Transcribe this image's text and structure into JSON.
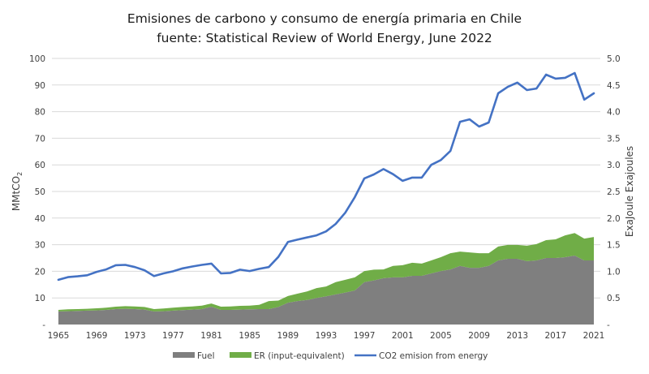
{
  "chart_data": {
    "type": "area",
    "title": "Emisiones de carbono y consumo de energía primaria en Chile",
    "subtitle": "fuente: Statistical Review of World Energy, June 2022",
    "ylabel": "MMtCO",
    "ylabel_sub": "2",
    "y2label": "ExaJoule Exajoules",
    "ylim": [
      0,
      100
    ],
    "y2lim": [
      0,
      5
    ],
    "xlim": [
      1965,
      2021
    ],
    "grid": true,
    "legend_position": "bottom",
    "y_ticks": [
      "-",
      "10",
      "20",
      "30",
      "40",
      "50",
      "60",
      "70",
      "80",
      "90",
      "100"
    ],
    "y2_ticks": [
      "-",
      "0.5",
      "1.0",
      "1.5",
      "2.0",
      "2.5",
      "3.0",
      "3.5",
      "4.0",
      "4.5",
      "5.0"
    ],
    "x_ticks": [
      "1965",
      "1969",
      "1973",
      "1977",
      "1981",
      "1985",
      "1989",
      "1993",
      "1997",
      "2001",
      "2005",
      "2009",
      "2013",
      "2017",
      "2021"
    ],
    "x": [
      1965,
      1966,
      1967,
      1968,
      1969,
      1970,
      1971,
      1972,
      1973,
      1974,
      1975,
      1976,
      1977,
      1978,
      1979,
      1980,
      1981,
      1982,
      1983,
      1984,
      1985,
      1986,
      1987,
      1988,
      1989,
      1990,
      1991,
      1992,
      1993,
      1994,
      1995,
      1996,
      1997,
      1998,
      1999,
      2000,
      2001,
      2002,
      2003,
      2004,
      2005,
      2006,
      2007,
      2008,
      2009,
      2010,
      2011,
      2012,
      2013,
      2014,
      2015,
      2016,
      2017,
      2018,
      2019,
      2020,
      2021
    ],
    "series": [
      {
        "name": "Fuel",
        "kind": "area",
        "axis": "right",
        "unit": "EJ",
        "color": "#7f7f7f",
        "values": [
          0.245,
          0.25,
          0.255,
          0.26,
          0.265,
          0.275,
          0.29,
          0.295,
          0.29,
          0.28,
          0.245,
          0.25,
          0.26,
          0.27,
          0.28,
          0.29,
          0.335,
          0.275,
          0.275,
          0.28,
          0.285,
          0.29,
          0.29,
          0.33,
          0.41,
          0.44,
          0.46,
          0.5,
          0.53,
          0.565,
          0.6,
          0.64,
          0.795,
          0.83,
          0.87,
          0.885,
          0.885,
          0.915,
          0.915,
          0.96,
          1.005,
          1.035,
          1.1,
          1.065,
          1.065,
          1.1,
          1.205,
          1.235,
          1.235,
          1.19,
          1.205,
          1.25,
          1.25,
          1.265,
          1.295,
          1.205,
          1.205
        ]
      },
      {
        "name": "ER (input-equivalent)",
        "kind": "area",
        "axis": "right",
        "unit": "EJ",
        "color": "#70ad47",
        "values": [
          0.03,
          0.035,
          0.035,
          0.035,
          0.04,
          0.04,
          0.045,
          0.05,
          0.05,
          0.05,
          0.045,
          0.05,
          0.055,
          0.06,
          0.06,
          0.065,
          0.06,
          0.06,
          0.065,
          0.07,
          0.07,
          0.08,
          0.15,
          0.12,
          0.125,
          0.14,
          0.16,
          0.185,
          0.185,
          0.23,
          0.24,
          0.245,
          0.21,
          0.2,
          0.165,
          0.215,
          0.23,
          0.245,
          0.23,
          0.245,
          0.26,
          0.305,
          0.27,
          0.29,
          0.275,
          0.24,
          0.26,
          0.26,
          0.26,
          0.29,
          0.305,
          0.335,
          0.35,
          0.41,
          0.425,
          0.41,
          0.44
        ]
      },
      {
        "name": "CO2 emision from energy",
        "kind": "line",
        "axis": "left",
        "unit": "MMtCO2",
        "color": "#4472c4",
        "values": [
          16.8,
          17.8,
          18.1,
          18.5,
          19.8,
          20.7,
          22.3,
          22.4,
          21.6,
          20.4,
          18.2,
          19.2,
          20.0,
          21.1,
          21.8,
          22.4,
          22.9,
          19.2,
          19.4,
          20.6,
          20.1,
          20.9,
          21.6,
          25.4,
          31.0,
          31.9,
          32.7,
          33.5,
          35.0,
          37.8,
          42.0,
          47.9,
          54.9,
          56.4,
          58.4,
          56.5,
          54.0,
          55.2,
          55.2,
          60.0,
          61.8,
          65.2,
          76.2,
          77.1,
          74.4,
          75.9,
          86.9,
          89.3,
          90.9,
          88.1,
          88.7,
          93.9,
          92.4,
          92.7,
          94.5,
          84.5,
          86.9
        ]
      }
    ]
  }
}
